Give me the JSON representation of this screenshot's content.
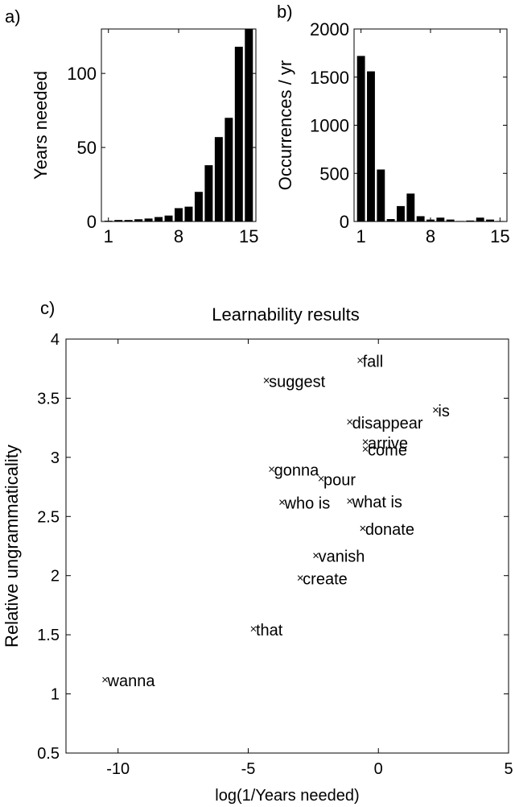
{
  "chart_data": [
    {
      "type": "bar",
      "panel_label": "a)",
      "title": "",
      "xlabel": "",
      "ylabel": "Years needed",
      "x": [
        1,
        2,
        3,
        4,
        5,
        6,
        7,
        8,
        9,
        10,
        11,
        12,
        13,
        14,
        15
      ],
      "values": [
        0.5,
        1,
        1,
        1.5,
        2,
        3,
        4,
        9,
        10,
        20,
        38,
        57,
        70,
        118,
        130
      ],
      "xticks": [
        "1",
        "8",
        "15"
      ],
      "yticks": [
        "0",
        "50",
        "100"
      ],
      "xlim": [
        0.3,
        15.7
      ],
      "ylim": [
        0,
        130
      ],
      "grid": false
    },
    {
      "type": "bar",
      "panel_label": "b)",
      "title": "",
      "xlabel": "",
      "ylabel": "Occurrences / yr",
      "x": [
        1,
        2,
        3,
        4,
        5,
        6,
        7,
        8,
        9,
        10,
        11,
        12,
        13,
        14,
        15
      ],
      "values": [
        1720,
        1560,
        540,
        25,
        160,
        290,
        55,
        20,
        40,
        20,
        5,
        10,
        40,
        20,
        5
      ],
      "xticks": [
        "1",
        "8",
        "15"
      ],
      "yticks": [
        "0",
        "500",
        "1000",
        "1500",
        "2000"
      ],
      "xlim": [
        0.3,
        15.7
      ],
      "ylim": [
        0,
        2000
      ],
      "grid": false
    },
    {
      "type": "scatter",
      "panel_label": "c)",
      "title": "Learnability results",
      "xlabel": "log(1/Years needed)",
      "ylabel": "Relative ungrammaticality",
      "xlim": [
        -12,
        5
      ],
      "ylim": [
        0.5,
        4
      ],
      "xticks": [
        "-10",
        "-5",
        "0",
        "5"
      ],
      "yticks": [
        "0.5",
        "1",
        "1.5",
        "2",
        "2.5",
        "3",
        "3.5",
        "4"
      ],
      "grid": false,
      "points": [
        {
          "x": -0.7,
          "y": 3.82,
          "label": "fall"
        },
        {
          "x": -4.3,
          "y": 3.65,
          "label": "suggest"
        },
        {
          "x": 2.2,
          "y": 3.4,
          "label": "is"
        },
        {
          "x": -1.1,
          "y": 3.3,
          "label": "disappear"
        },
        {
          "x": -0.5,
          "y": 3.13,
          "label": "arrive"
        },
        {
          "x": -0.5,
          "y": 3.07,
          "label": "come"
        },
        {
          "x": -4.1,
          "y": 2.9,
          "label": "gonna"
        },
        {
          "x": -2.2,
          "y": 2.82,
          "label": "pour"
        },
        {
          "x": -3.7,
          "y": 2.62,
          "label": "who is"
        },
        {
          "x": -1.1,
          "y": 2.63,
          "label": "what is"
        },
        {
          "x": -0.6,
          "y": 2.4,
          "label": "donate"
        },
        {
          "x": -2.4,
          "y": 2.17,
          "label": "vanish"
        },
        {
          "x": -3.0,
          "y": 1.98,
          "label": "create"
        },
        {
          "x": -4.8,
          "y": 1.55,
          "label": "that"
        },
        {
          "x": -10.5,
          "y": 1.12,
          "label": "wanna"
        }
      ]
    }
  ]
}
